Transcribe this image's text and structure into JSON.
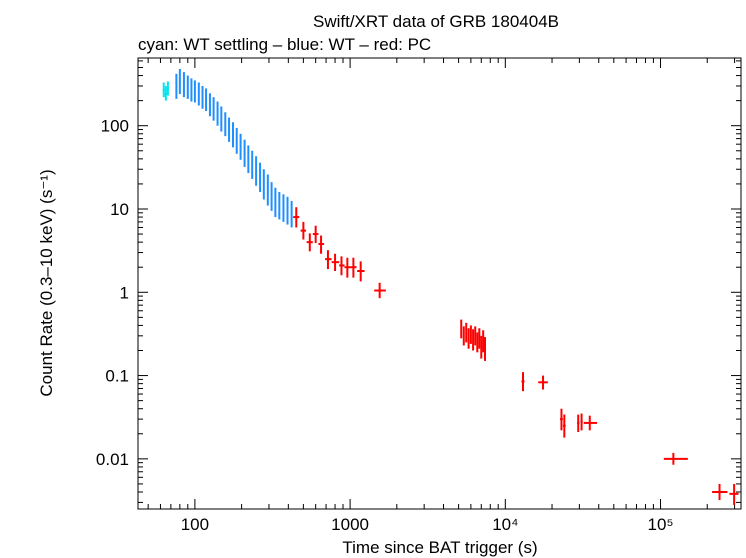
{
  "chart_data": {
    "type": "scatter",
    "title": "Swift/XRT data of GRB 180404B",
    "subtitle": "cyan: WT settling – blue: WT – red: PC",
    "xlabel": "Time since BAT trigger (s)",
    "ylabel": "Count Rate (0.3–10 keV) (s⁻¹)",
    "xscale": "log",
    "yscale": "log",
    "xlim": [
      43,
      330000
    ],
    "ylim": [
      0.0025,
      650
    ],
    "x_ticks": [
      {
        "value": 100,
        "label": "100"
      },
      {
        "value": 1000,
        "label": "1000"
      },
      {
        "value": 10000,
        "label": "10⁴"
      },
      {
        "value": 100000,
        "label": "10⁵"
      }
    ],
    "y_ticks": [
      {
        "value": 100,
        "label": "100"
      },
      {
        "value": 10,
        "label": "10"
      },
      {
        "value": 1,
        "label": "1"
      },
      {
        "value": 0.1,
        "label": "0.1"
      },
      {
        "value": 0.01,
        "label": "0.01"
      }
    ],
    "colors": {
      "wt_settling": "#00e5ee",
      "wt": "#1e8fff",
      "pc": "#ff0000"
    },
    "series": [
      {
        "name": "WT settling",
        "color": "#00e5ee",
        "points": [
          {
            "x": 63,
            "y": 270,
            "xlo": 62,
            "xhi": 64,
            "ylo": 220,
            "yhi": 330
          },
          {
            "x": 65,
            "y": 240,
            "xlo": 64,
            "xhi": 66,
            "ylo": 200,
            "yhi": 300
          },
          {
            "x": 67,
            "y": 280,
            "xlo": 66,
            "xhi": 68,
            "ylo": 230,
            "yhi": 340
          }
        ]
      },
      {
        "name": "WT",
        "color": "#1e8fff",
        "points": [
          {
            "x": 76,
            "y": 300,
            "xlo": 75,
            "xhi": 77,
            "ylo": 210,
            "yhi": 420
          },
          {
            "x": 80,
            "y": 340,
            "xlo": 79,
            "xhi": 81,
            "ylo": 240,
            "yhi": 480
          },
          {
            "x": 85,
            "y": 310,
            "xlo": 84,
            "xhi": 86,
            "ylo": 220,
            "yhi": 440
          },
          {
            "x": 90,
            "y": 290,
            "xlo": 89,
            "xhi": 91,
            "ylo": 210,
            "yhi": 400
          },
          {
            "x": 95,
            "y": 270,
            "xlo": 94,
            "xhi": 96,
            "ylo": 195,
            "yhi": 370
          },
          {
            "x": 100,
            "y": 260,
            "xlo": 99,
            "xhi": 101,
            "ylo": 190,
            "yhi": 350
          },
          {
            "x": 106,
            "y": 240,
            "xlo": 105,
            "xhi": 107,
            "ylo": 175,
            "yhi": 330
          },
          {
            "x": 112,
            "y": 220,
            "xlo": 111,
            "xhi": 113,
            "ylo": 160,
            "yhi": 300
          },
          {
            "x": 118,
            "y": 205,
            "xlo": 117,
            "xhi": 119,
            "ylo": 150,
            "yhi": 280
          },
          {
            "x": 125,
            "y": 180,
            "xlo": 124,
            "xhi": 126,
            "ylo": 130,
            "yhi": 245
          },
          {
            "x": 132,
            "y": 160,
            "xlo": 131,
            "xhi": 133,
            "ylo": 115,
            "yhi": 220
          },
          {
            "x": 140,
            "y": 140,
            "xlo": 139,
            "xhi": 141,
            "ylo": 100,
            "yhi": 195
          },
          {
            "x": 148,
            "y": 120,
            "xlo": 147,
            "xhi": 149,
            "ylo": 85,
            "yhi": 170
          },
          {
            "x": 157,
            "y": 105,
            "xlo": 156,
            "xhi": 158,
            "ylo": 75,
            "yhi": 145
          },
          {
            "x": 166,
            "y": 90,
            "xlo": 165,
            "xhi": 167,
            "ylo": 64,
            "yhi": 125
          },
          {
            "x": 176,
            "y": 78,
            "xlo": 175,
            "xhi": 177,
            "ylo": 55,
            "yhi": 110
          },
          {
            "x": 186,
            "y": 66,
            "xlo": 185,
            "xhi": 187,
            "ylo": 46,
            "yhi": 94
          },
          {
            "x": 197,
            "y": 56,
            "xlo": 196,
            "xhi": 198,
            "ylo": 39,
            "yhi": 80
          },
          {
            "x": 209,
            "y": 47,
            "xlo": 208,
            "xhi": 210,
            "ylo": 32,
            "yhi": 68
          },
          {
            "x": 221,
            "y": 40,
            "xlo": 220,
            "xhi": 222,
            "ylo": 27,
            "yhi": 58
          },
          {
            "x": 234,
            "y": 34,
            "xlo": 233,
            "xhi": 235,
            "ylo": 23,
            "yhi": 50
          },
          {
            "x": 248,
            "y": 29,
            "xlo": 247,
            "xhi": 249,
            "ylo": 19,
            "yhi": 43
          },
          {
            "x": 263,
            "y": 24,
            "xlo": 262,
            "xhi": 264,
            "ylo": 16,
            "yhi": 36
          },
          {
            "x": 278,
            "y": 20,
            "xlo": 277,
            "xhi": 279,
            "ylo": 13,
            "yhi": 30
          },
          {
            "x": 295,
            "y": 17,
            "xlo": 294,
            "xhi": 296,
            "ylo": 11,
            "yhi": 26
          },
          {
            "x": 312,
            "y": 14,
            "xlo": 311,
            "xhi": 313,
            "ylo": 9.5,
            "yhi": 21
          },
          {
            "x": 330,
            "y": 12,
            "xlo": 329,
            "xhi": 331,
            "ylo": 8,
            "yhi": 18
          },
          {
            "x": 350,
            "y": 11,
            "xlo": 349,
            "xhi": 351,
            "ylo": 7.5,
            "yhi": 16
          },
          {
            "x": 372,
            "y": 10.5,
            "xlo": 371,
            "xhi": 373,
            "ylo": 7,
            "yhi": 15
          },
          {
            "x": 395,
            "y": 9.5,
            "xlo": 394,
            "xhi": 396,
            "ylo": 6.5,
            "yhi": 14
          },
          {
            "x": 420,
            "y": 8.5,
            "xlo": 419,
            "xhi": 421,
            "ylo": 6,
            "yhi": 12.5
          }
        ]
      },
      {
        "name": "PC",
        "color": "#ff0000",
        "points": [
          {
            "x": 450,
            "y": 8.0,
            "xlo": 430,
            "xhi": 470,
            "ylo": 6.0,
            "yhi": 10.5
          },
          {
            "x": 500,
            "y": 5.5,
            "xlo": 480,
            "xhi": 520,
            "ylo": 4.3,
            "yhi": 7.0
          },
          {
            "x": 550,
            "y": 4.0,
            "xlo": 525,
            "xhi": 575,
            "ylo": 3.1,
            "yhi": 5.1
          },
          {
            "x": 600,
            "y": 5.0,
            "xlo": 575,
            "xhi": 625,
            "ylo": 3.9,
            "yhi": 6.3
          },
          {
            "x": 650,
            "y": 3.8,
            "xlo": 625,
            "xhi": 680,
            "ylo": 2.9,
            "yhi": 4.8
          },
          {
            "x": 720,
            "y": 2.5,
            "xlo": 690,
            "xhi": 760,
            "ylo": 1.9,
            "yhi": 3.2
          },
          {
            "x": 800,
            "y": 2.3,
            "xlo": 760,
            "xhi": 850,
            "ylo": 1.8,
            "yhi": 2.9
          },
          {
            "x": 880,
            "y": 2.1,
            "xlo": 850,
            "xhi": 920,
            "ylo": 1.6,
            "yhi": 2.7
          },
          {
            "x": 960,
            "y": 2.0,
            "xlo": 920,
            "xhi": 1000,
            "ylo": 1.5,
            "yhi": 2.6
          },
          {
            "x": 1050,
            "y": 2.0,
            "xlo": 1000,
            "xhi": 1100,
            "ylo": 1.5,
            "yhi": 2.6
          },
          {
            "x": 1170,
            "y": 1.8,
            "xlo": 1110,
            "xhi": 1240,
            "ylo": 1.35,
            "yhi": 2.35
          },
          {
            "x": 1550,
            "y": 1.05,
            "xlo": 1430,
            "xhi": 1700,
            "ylo": 0.85,
            "yhi": 1.3
          },
          {
            "x": 5200,
            "y": 0.36,
            "xlo": 5150,
            "xhi": 5260,
            "ylo": 0.28,
            "yhi": 0.47
          },
          {
            "x": 5400,
            "y": 0.3,
            "xlo": 5340,
            "xhi": 5460,
            "ylo": 0.23,
            "yhi": 0.39
          },
          {
            "x": 5600,
            "y": 0.33,
            "xlo": 5540,
            "xhi": 5660,
            "ylo": 0.25,
            "yhi": 0.43
          },
          {
            "x": 5800,
            "y": 0.28,
            "xlo": 5740,
            "xhi": 5860,
            "ylo": 0.21,
            "yhi": 0.37
          },
          {
            "x": 6000,
            "y": 0.31,
            "xlo": 5940,
            "xhi": 6060,
            "ylo": 0.24,
            "yhi": 0.4
          },
          {
            "x": 6200,
            "y": 0.27,
            "xlo": 6140,
            "xhi": 6260,
            "ylo": 0.2,
            "yhi": 0.36
          },
          {
            "x": 6400,
            "y": 0.3,
            "xlo": 6340,
            "xhi": 6460,
            "ylo": 0.23,
            "yhi": 0.39
          },
          {
            "x": 6600,
            "y": 0.25,
            "xlo": 6540,
            "xhi": 6660,
            "ylo": 0.19,
            "yhi": 0.33
          },
          {
            "x": 6800,
            "y": 0.28,
            "xlo": 6740,
            "xhi": 6860,
            "ylo": 0.21,
            "yhi": 0.37
          },
          {
            "x": 7000,
            "y": 0.22,
            "xlo": 6940,
            "xhi": 7060,
            "ylo": 0.16,
            "yhi": 0.3
          },
          {
            "x": 7200,
            "y": 0.26,
            "xlo": 7140,
            "xhi": 7260,
            "ylo": 0.19,
            "yhi": 0.35
          },
          {
            "x": 7400,
            "y": 0.21,
            "xlo": 7340,
            "xhi": 7460,
            "ylo": 0.15,
            "yhi": 0.29
          },
          {
            "x": 13000,
            "y": 0.085,
            "xlo": 12700,
            "xhi": 13300,
            "ylo": 0.065,
            "yhi": 0.11
          },
          {
            "x": 17500,
            "y": 0.083,
            "xlo": 16300,
            "xhi": 18800,
            "ylo": 0.068,
            "yhi": 0.1
          },
          {
            "x": 23000,
            "y": 0.03,
            "xlo": 22500,
            "xhi": 23500,
            "ylo": 0.022,
            "yhi": 0.04
          },
          {
            "x": 24000,
            "y": 0.025,
            "xlo": 23500,
            "xhi": 24500,
            "ylo": 0.018,
            "yhi": 0.034
          },
          {
            "x": 29500,
            "y": 0.027,
            "xlo": 29000,
            "xhi": 30000,
            "ylo": 0.021,
            "yhi": 0.034
          },
          {
            "x": 31000,
            "y": 0.028,
            "xlo": 30500,
            "xhi": 31500,
            "ylo": 0.022,
            "yhi": 0.035
          },
          {
            "x": 35000,
            "y": 0.027,
            "xlo": 32000,
            "xhi": 39000,
            "ylo": 0.022,
            "yhi": 0.033
          },
          {
            "x": 121000,
            "y": 0.01,
            "xlo": 105000,
            "xhi": 150000,
            "ylo": 0.0085,
            "yhi": 0.0118
          },
          {
            "x": 240000,
            "y": 0.004,
            "xlo": 215000,
            "xhi": 270000,
            "ylo": 0.0032,
            "yhi": 0.005
          },
          {
            "x": 298000,
            "y": 0.0038,
            "xlo": 278000,
            "xhi": 318000,
            "ylo": 0.0028,
            "yhi": 0.005
          }
        ]
      }
    ]
  }
}
